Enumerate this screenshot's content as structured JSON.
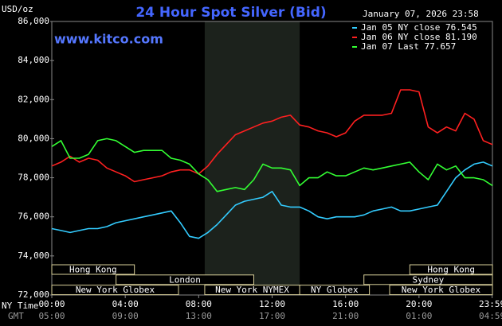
{
  "chart_data": {
    "type": "line",
    "title": "24 Hour Spot Silver (Bid)",
    "watermark": "www.kitco.com",
    "y_label": "USD/oz",
    "timestamp": "January 07, 2026 23:58",
    "x_row_label": "NY Time",
    "x2_row_label": "GMT",
    "xlim": [
      0,
      24
    ],
    "xticks": [
      {
        "value": 0,
        "label": "00:00"
      },
      {
        "value": 4,
        "label": "04:00"
      },
      {
        "value": 8,
        "label": "08:00"
      },
      {
        "value": 12,
        "label": "12:00"
      },
      {
        "value": 16,
        "label": "16:00"
      },
      {
        "value": 20,
        "label": "20:00"
      },
      {
        "value": 23.983,
        "label": "23:59"
      }
    ],
    "x2tick_labels": [
      "05:00",
      "09:00",
      "13:00",
      "17:00",
      "21:00",
      "01:00",
      "04:59"
    ],
    "ylim": [
      72000,
      86000
    ],
    "yticks": [
      {
        "value": 72000,
        "label": "72,000"
      },
      {
        "value": 74000,
        "label": "74,000"
      },
      {
        "value": 76000,
        "label": "76,000"
      },
      {
        "value": 78000,
        "label": "78,000"
      },
      {
        "value": 80000,
        "label": "80,000"
      },
      {
        "value": 82000,
        "label": "82,000"
      },
      {
        "value": 84000,
        "label": "84,000"
      },
      {
        "value": 86000,
        "label": "86,000"
      }
    ],
    "grid": false,
    "shaded_session": [
      8.33,
      13.5
    ],
    "sessions": [
      {
        "label": "Hong Kong",
        "start": 0,
        "end": 4.5,
        "row": 0
      },
      {
        "label": "Hong Kong",
        "start": 19.5,
        "end": 24,
        "row": 0
      },
      {
        "label": "London",
        "start": 3.5,
        "end": 11,
        "row": 1
      },
      {
        "label": "Sydney",
        "start": 17,
        "end": 24,
        "row": 1
      },
      {
        "label": "New York Globex",
        "start": 0,
        "end": 6.9,
        "row": 2
      },
      {
        "label": "New York NYMEX",
        "start": 8.33,
        "end": 13.5,
        "row": 2
      },
      {
        "label": "NY Globex",
        "start": 13.5,
        "end": 17.3,
        "row": 2
      },
      {
        "label": "New York Globex",
        "start": 18.4,
        "end": 24,
        "row": 2
      }
    ],
    "x": [
      0,
      0.5,
      1,
      1.5,
      2,
      2.5,
      3,
      3.5,
      4,
      4.5,
      5,
      5.5,
      6,
      6.5,
      7,
      7.5,
      8,
      8.5,
      9,
      9.5,
      10,
      10.5,
      11,
      11.5,
      12,
      12.5,
      13,
      13.5,
      14,
      14.5,
      15,
      15.5,
      16,
      16.5,
      17,
      17.5,
      18,
      18.5,
      19,
      19.5,
      20,
      20.5,
      21,
      21.5,
      22,
      22.5,
      23,
      23.5,
      24
    ],
    "series": [
      {
        "name": "Jan 05 NY close 76.545",
        "color": "#33ccff",
        "values": [
          75400,
          75300,
          75200,
          75300,
          75400,
          75400,
          75500,
          75700,
          75800,
          75900,
          76000,
          76100,
          76200,
          76300,
          75700,
          75000,
          74900,
          75200,
          75600,
          76100,
          76600,
          76800,
          76900,
          77000,
          77300,
          76600,
          76500,
          76500,
          76300,
          76000,
          75900,
          76000,
          76000,
          76000,
          76100,
          76300,
          76400,
          76500,
          76300,
          76300,
          76400,
          76500,
          76600,
          77300,
          78000,
          78400,
          78700,
          78800,
          78600
        ]
      },
      {
        "name": "Jan 06 NY close 81.190",
        "color": "#ff2020",
        "values": [
          78600,
          78800,
          79100,
          78800,
          79000,
          78900,
          78500,
          78300,
          78100,
          77800,
          77900,
          78000,
          78100,
          78300,
          78400,
          78400,
          78200,
          78600,
          79200,
          79700,
          80200,
          80400,
          80600,
          80800,
          80900,
          81100,
          81200,
          80700,
          80600,
          80400,
          80300,
          80100,
          80300,
          80900,
          81200,
          81200,
          81200,
          81300,
          82500,
          82500,
          82400,
          80600,
          80300,
          80600,
          80400,
          81300,
          81000,
          79900,
          79700
        ]
      },
      {
        "name": "Jan 07 Last 77.657",
        "color": "#33ff33",
        "values": [
          79600,
          79900,
          79000,
          79000,
          79200,
          79900,
          80000,
          79900,
          79600,
          79300,
          79400,
          79400,
          79400,
          79000,
          78900,
          78700,
          78200,
          77900,
          77300,
          77400,
          77500,
          77400,
          77900,
          78700,
          78500,
          78500,
          78400,
          77600,
          78000,
          78000,
          78300,
          78100,
          78100,
          78300,
          78500,
          78400,
          78500,
          78600,
          78700,
          78800,
          78300,
          77900,
          78700,
          78400,
          78600,
          78000,
          78000,
          77900,
          77600
        ]
      }
    ]
  }
}
